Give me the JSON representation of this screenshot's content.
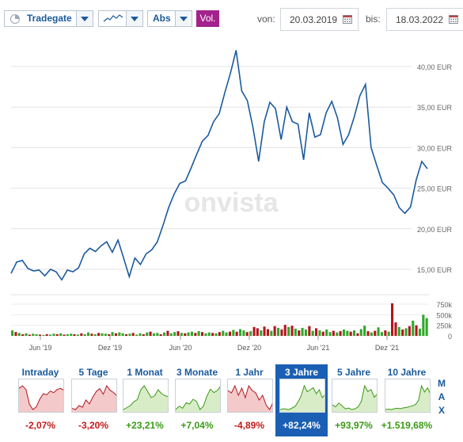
{
  "toolbar": {
    "exchange": "Tradegate",
    "scale": "Abs",
    "volume_label": "Vol.",
    "from_label": "von:",
    "from_date": "20.03.2019",
    "to_label": "bis:",
    "to_date": "18.03.2022",
    "icons": {
      "exchange": "clock-icon",
      "chart_type": "line-chart-icon",
      "calendar": "calendar-icon"
    }
  },
  "watermark": "onvista",
  "chart_data": [
    {
      "type": "line",
      "series": [
        {
          "values": [
            14.5,
            15.9,
            16.1,
            15.1,
            14.8,
            14.9,
            14.2,
            15.0,
            14.7,
            13.7,
            14.9,
            14.7,
            15.2,
            16.9,
            17.6,
            17.2,
            17.9,
            18.4,
            17.1,
            18.6,
            16.4,
            14.1,
            16.4,
            15.6,
            16.9,
            17.4,
            18.4,
            20.4,
            22.6,
            24.3,
            25.6,
            25.9,
            27.5,
            29.2,
            30.8,
            31.5,
            33.2,
            34.2,
            36.8,
            39.2,
            42.0,
            37.0,
            35.8,
            32.5,
            28.3,
            33.2,
            35.6,
            34.8,
            31.0,
            35.0,
            33.2,
            32.9,
            28.5,
            34.3,
            31.3,
            31.6,
            34.3,
            35.7,
            33.7,
            30.4,
            31.6,
            33.8,
            36.4,
            37.8,
            30.0,
            27.8,
            25.7,
            25.0,
            24.2,
            22.6,
            21.9,
            22.7,
            26.0,
            28.3,
            27.4
          ]
        }
      ],
      "yticks": [
        "40,00 EUR",
        "35,00 EUR",
        "30,00 EUR",
        "25,00 EUR",
        "20,00 EUR",
        "15,00 EUR"
      ],
      "y_range": [
        14,
        42
      ],
      "currency": "EUR"
    },
    {
      "type": "bar",
      "series": [
        {
          "values": [
            130,
            90,
            70,
            40,
            60,
            30,
            50,
            40,
            30,
            20,
            40,
            30,
            50,
            40,
            60,
            30,
            40,
            50,
            40,
            30,
            60,
            40,
            80,
            50,
            40,
            70,
            60,
            50,
            40,
            90,
            60,
            80,
            60,
            40,
            50,
            70,
            30,
            60,
            40,
            80,
            100,
            60,
            70,
            40,
            80,
            120,
            60,
            90,
            110,
            70,
            60,
            80,
            100,
            70,
            110,
            90,
            60,
            80,
            70,
            60,
            90,
            120,
            80,
            100,
            140,
            100,
            160,
            130,
            90,
            110,
            210,
            180,
            130,
            220,
            160,
            120,
            230,
            190,
            150,
            260,
            210,
            240,
            170,
            130,
            190,
            150,
            230,
            120,
            180,
            130,
            100,
            150,
            90,
            120,
            80,
            110,
            150,
            120,
            100,
            130,
            60,
            160,
            240,
            110,
            80,
            120,
            200,
            90,
            130,
            100,
            770,
            320,
            210,
            150,
            180,
            230,
            360,
            250,
            170,
            500,
            420
          ]
        }
      ],
      "colors": [
        "#2fa82a",
        "#b3151e",
        "#2fa82a",
        "#b3151e",
        "#2fa82a",
        "#b3151e",
        "#2fa82a",
        "#2fa82a",
        "#b3151e",
        "#2fa82a",
        "#b3151e",
        "#2fa82a",
        "#2fa82a",
        "#b3151e",
        "#2fa82a",
        "#b3151e",
        "#2fa82a",
        "#2fa82a",
        "#b3151e",
        "#2fa82a",
        "#b3151e",
        "#2fa82a",
        "#2fa82a",
        "#b3151e",
        "#2fa82a",
        "#b3151e",
        "#2fa82a",
        "#2fa82a",
        "#b3151e",
        "#2fa82a",
        "#b3151e",
        "#2fa82a",
        "#2fa82a",
        "#b3151e",
        "#2fa82a",
        "#b3151e",
        "#2fa82a",
        "#2fa82a",
        "#b3151e",
        "#2fa82a",
        "#b3151e",
        "#2fa82a",
        "#2fa82a",
        "#b3151e",
        "#2fa82a",
        "#b3151e",
        "#2fa82a",
        "#2fa82a",
        "#b3151e",
        "#2fa82a",
        "#b3151e",
        "#2fa82a",
        "#2fa82a",
        "#b3151e",
        "#2fa82a",
        "#b3151e",
        "#2fa82a",
        "#2fa82a",
        "#b3151e",
        "#2fa82a",
        "#b3151e",
        "#2fa82a",
        "#2fa82a",
        "#b3151e",
        "#2fa82a",
        "#b3151e",
        "#2fa82a",
        "#2fa82a",
        "#b3151e",
        "#2fa82a",
        "#b3151e",
        "#b3151e",
        "#2fa82a",
        "#b3151e",
        "#b3151e",
        "#2fa82a",
        "#b3151e",
        "#2fa82a",
        "#b3151e",
        "#b3151e",
        "#2fa82a",
        "#b3151e",
        "#2fa82a",
        "#b3151e",
        "#2fa82a",
        "#2fa82a",
        "#b3151e",
        "#2fa82a",
        "#b3151e",
        "#2fa82a",
        "#b3151e",
        "#2fa82a",
        "#2fa82a",
        "#b3151e",
        "#2fa82a",
        "#b3151e",
        "#2fa82a",
        "#2fa82a",
        "#b3151e",
        "#2fa82a",
        "#b3151e",
        "#2fa82a",
        "#2fa82a",
        "#b3151e",
        "#2fa82a",
        "#b3151e",
        "#2fa82a",
        "#2fa82a",
        "#b3151e",
        "#2fa82a",
        "#b3151e",
        "#b3151e",
        "#2fa82a",
        "#b3151e",
        "#2fa82a",
        "#b3151e",
        "#2fa82a",
        "#b3151e",
        "#2fa82a",
        "#2fa82a",
        "#2fa82a"
      ],
      "yticks": [
        "750k",
        "500k",
        "250k",
        "0"
      ],
      "y_max": 800
    }
  ],
  "x_ticks": [
    "Jun '19",
    "Dez '19",
    "Jun '20",
    "Dez '20",
    "Jun '21",
    "Dez '21"
  ],
  "colors": {
    "line": "#1b5a9e",
    "up": "#2fa82a",
    "down": "#b3151e",
    "accent": "#a3228c",
    "active_tab": "#1a5fb4"
  },
  "periods": [
    {
      "label": "Intraday",
      "change": "-2,07%",
      "trend": "neg",
      "spark": [
        50,
        55,
        48,
        20,
        10,
        15,
        30,
        40,
        38,
        45,
        42,
        48,
        50,
        46
      ]
    },
    {
      "label": "5 Tage",
      "change": "-3,20%",
      "trend": "neg",
      "spark": [
        30,
        28,
        35,
        32,
        45,
        38,
        50,
        60,
        65,
        55,
        70,
        62,
        58,
        52
      ]
    },
    {
      "label": "1 Monat",
      "change": "+23,21%",
      "trend": "pos",
      "spark": [
        10,
        15,
        20,
        30,
        35,
        60,
        70,
        55,
        40,
        45,
        60,
        50,
        45,
        42
      ]
    },
    {
      "label": "3 Monate",
      "change": "+7,04%",
      "trend": "pos",
      "spark": [
        30,
        35,
        32,
        40,
        38,
        45,
        42,
        30,
        35,
        50,
        60,
        55,
        58,
        65
      ]
    },
    {
      "label": "1 Jahr",
      "change": "-4,89%",
      "trend": "neg",
      "spark": [
        60,
        55,
        70,
        50,
        65,
        45,
        70,
        60,
        55,
        40,
        50,
        30,
        20,
        35
      ]
    },
    {
      "label": "3 Jahre",
      "change": "+82,24%",
      "trend": "pos",
      "active": true,
      "spark": [
        10,
        12,
        11,
        10,
        14,
        18,
        30,
        45,
        70,
        55,
        60,
        65,
        50,
        60,
        40,
        48
      ]
    },
    {
      "label": "5 Jahre",
      "change": "+93,97%",
      "trend": "pos",
      "spark": [
        20,
        15,
        25,
        18,
        10,
        12,
        8,
        10,
        15,
        30,
        70,
        55,
        60,
        40,
        50
      ]
    },
    {
      "label": "10 Jahre",
      "change": "+1.519,68%",
      "trend": "pos",
      "spark": [
        3,
        4,
        3,
        5,
        6,
        5,
        7,
        8,
        10,
        12,
        15,
        25,
        60,
        45,
        55,
        40
      ]
    }
  ],
  "max_label": [
    "M",
    "A",
    "X"
  ]
}
